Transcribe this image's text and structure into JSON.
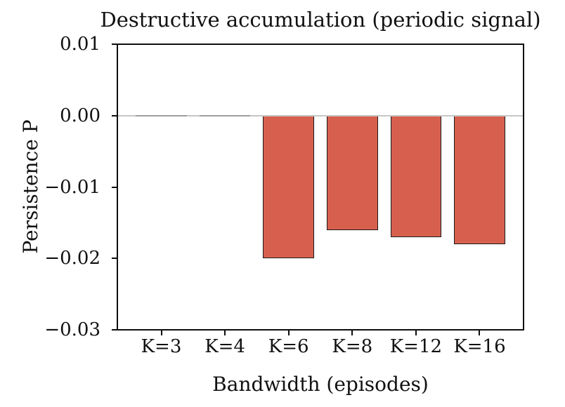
{
  "chart_data": {
    "type": "bar",
    "title": "Destructive accumulation (periodic signal)",
    "xlabel": "Bandwidth (episodes)",
    "ylabel": "Persistence P",
    "categories": [
      "K=3",
      "K=4",
      "K=6",
      "K=8",
      "K=12",
      "K=16"
    ],
    "values": [
      0.0,
      0.0,
      -0.02,
      -0.016,
      -0.017,
      -0.018
    ],
    "ylim": [
      -0.03,
      0.01
    ],
    "yticks": [
      0.01,
      0.0,
      -0.01,
      -0.02,
      -0.03
    ],
    "ytick_labels": [
      "0.01",
      "0.00",
      "−0.01",
      "−0.02",
      "−0.03"
    ],
    "xlim": [
      -0.69,
      5.69
    ],
    "bar_width_units": 0.8,
    "bar_color": "#d6604d",
    "bar_edge_color": "#1a1a1a",
    "zero_line_color": "#c6c6c6",
    "zero_bar_color": "#9e9e9e",
    "spine_color": "#0e0e0e",
    "grid": false,
    "legend": "none",
    "zero_line": true
  }
}
